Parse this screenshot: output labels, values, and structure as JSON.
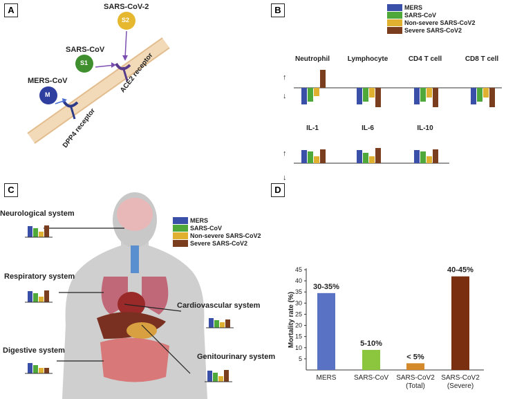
{
  "panels": {
    "a": "A",
    "b": "B",
    "c": "C",
    "d": "D"
  },
  "panel_a": {
    "viruses": [
      {
        "name": "SARS-CoV-2",
        "badge": "S2"
      },
      {
        "name": "SARS-CoV",
        "badge": "S1"
      },
      {
        "name": "MERS-CoV",
        "badge": "M"
      }
    ],
    "receptors": [
      "DPP4 receptor",
      "ACE2 receptor"
    ]
  },
  "legend": [
    {
      "name": "MERS",
      "color": "#3a4fa8"
    },
    {
      "name": "SARS-CoV",
      "color": "#4fa83a"
    },
    {
      "name": "Non-severe SARS-CoV2",
      "color": "#e0b030"
    },
    {
      "name": "Severe SARS-CoV2",
      "color": "#7a3e1e"
    }
  ],
  "panel_b": {
    "cells": [
      "Neutrophil",
      "Lymphocyte",
      "CD4 T cell",
      "CD8 T cell"
    ],
    "cytokines": [
      "IL-1",
      "IL-6",
      "IL-10"
    ],
    "up": "↑",
    "down": "↓"
  },
  "panel_c": {
    "systems": [
      "Neurological system",
      "Respiratory system",
      "Cardiovascular system",
      "Digestive  system",
      "Genitourinary system"
    ]
  },
  "chart_data": {
    "type": "bar",
    "ylabel": "Mortality rate (%)",
    "categories": [
      "MERS",
      "SARS-CoV",
      "SARS-CoV2 (Total)",
      "SARS-CoV2 (Severe)"
    ],
    "values": [
      34.5,
      9,
      3,
      42
    ],
    "value_labels": [
      "30-35%",
      "5-10%",
      "< 5%",
      "40-45%"
    ],
    "colors": [
      "#5a72c4",
      "#8cc63f",
      "#d4892a",
      "#7a3010"
    ],
    "ylim": [
      0,
      45
    ],
    "yticks": [
      5,
      10,
      15,
      20,
      25,
      30,
      35,
      40,
      45
    ]
  }
}
